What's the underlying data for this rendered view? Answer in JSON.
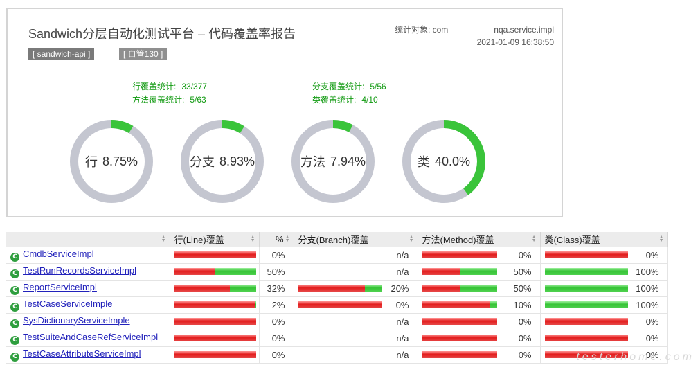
{
  "report": {
    "title": "Sandwich分层自动化测试平台 – 代码覆盖率报告",
    "target_prefix": "统计对象: com",
    "target_suffix": "nqa.service.impl",
    "timestamp": "2021-01-09 16:38:50",
    "project_tag": "[ sandwich-api ]",
    "build_tag": "[ 自管130 ]"
  },
  "stats": {
    "line_label": "行覆盖统计:",
    "line_value": "33/377",
    "method_label": "方法覆盖统计:",
    "method_value": "5/63",
    "branch_label": "分支覆盖统计:",
    "branch_value": "5/56",
    "class_label": "类覆盖统计:",
    "class_value": "4/10"
  },
  "rings": [
    {
      "name": "行",
      "percent": "8.75%",
      "fraction": 0.0875
    },
    {
      "name": "分支",
      "percent": "8.93%",
      "fraction": 0.0893
    },
    {
      "name": "方法",
      "percent": "7.94%",
      "fraction": 0.0794
    },
    {
      "name": "类",
      "percent": "40.0%",
      "fraction": 0.4
    }
  ],
  "colors": {
    "covered": "#3ac43a",
    "missed": "#c4c6d0",
    "stat_text": "#119a11",
    "link": "#2222bb"
  },
  "table": {
    "headers": {
      "element": "",
      "line": "行(Line)覆盖",
      "line_pct": "%",
      "branch": "分支(Branch)覆盖",
      "method": "方法(Method)覆盖",
      "class": "类(Class)覆盖"
    },
    "class_icon": "class-c-icon",
    "rows": [
      {
        "name": "CmdbServiceImpl",
        "line": {
          "covered_fraction": 0,
          "pct": "0%"
        },
        "branch": {
          "covered_fraction": null,
          "pct": "n/a"
        },
        "method": {
          "covered_fraction": 0,
          "pct": "0%"
        },
        "class": {
          "covered_fraction": 0,
          "pct": "0%"
        }
      },
      {
        "name": "TestRunRecordsServiceImpl",
        "line": {
          "covered_fraction": 0.5,
          "pct": "50%"
        },
        "branch": {
          "covered_fraction": null,
          "pct": "n/a"
        },
        "method": {
          "covered_fraction": 0.5,
          "pct": "50%"
        },
        "class": {
          "covered_fraction": 1,
          "pct": "100%"
        }
      },
      {
        "name": "ReportServiceImpl",
        "line": {
          "covered_fraction": 0.32,
          "pct": "32%"
        },
        "branch": {
          "covered_fraction": 0.2,
          "pct": "20%"
        },
        "method": {
          "covered_fraction": 0.5,
          "pct": "50%"
        },
        "class": {
          "covered_fraction": 1,
          "pct": "100%"
        }
      },
      {
        "name": "TestCaseServiceImple",
        "line": {
          "covered_fraction": 0.02,
          "pct": "2%"
        },
        "branch": {
          "covered_fraction": 0,
          "pct": "0%"
        },
        "method": {
          "covered_fraction": 0.1,
          "pct": "10%"
        },
        "class": {
          "covered_fraction": 1,
          "pct": "100%"
        }
      },
      {
        "name": "SysDictionaryServiceImple",
        "line": {
          "covered_fraction": 0,
          "pct": "0%"
        },
        "branch": {
          "covered_fraction": null,
          "pct": "n/a"
        },
        "method": {
          "covered_fraction": 0,
          "pct": "0%"
        },
        "class": {
          "covered_fraction": 0,
          "pct": "0%"
        }
      },
      {
        "name": "TestSuiteAndCaseRefServiceImpl",
        "line": {
          "covered_fraction": 0,
          "pct": "0%"
        },
        "branch": {
          "covered_fraction": null,
          "pct": "n/a"
        },
        "method": {
          "covered_fraction": 0,
          "pct": "0%"
        },
        "class": {
          "covered_fraction": 0,
          "pct": "0%"
        }
      },
      {
        "name": "TestCaseAttributeServiceImpl",
        "line": {
          "covered_fraction": 0,
          "pct": "0%"
        },
        "branch": {
          "covered_fraction": null,
          "pct": "n/a"
        },
        "method": {
          "covered_fraction": 0,
          "pct": "0%"
        },
        "class": {
          "covered_fraction": 0,
          "pct": "0%"
        }
      }
    ]
  },
  "watermark": "testerhome.com"
}
